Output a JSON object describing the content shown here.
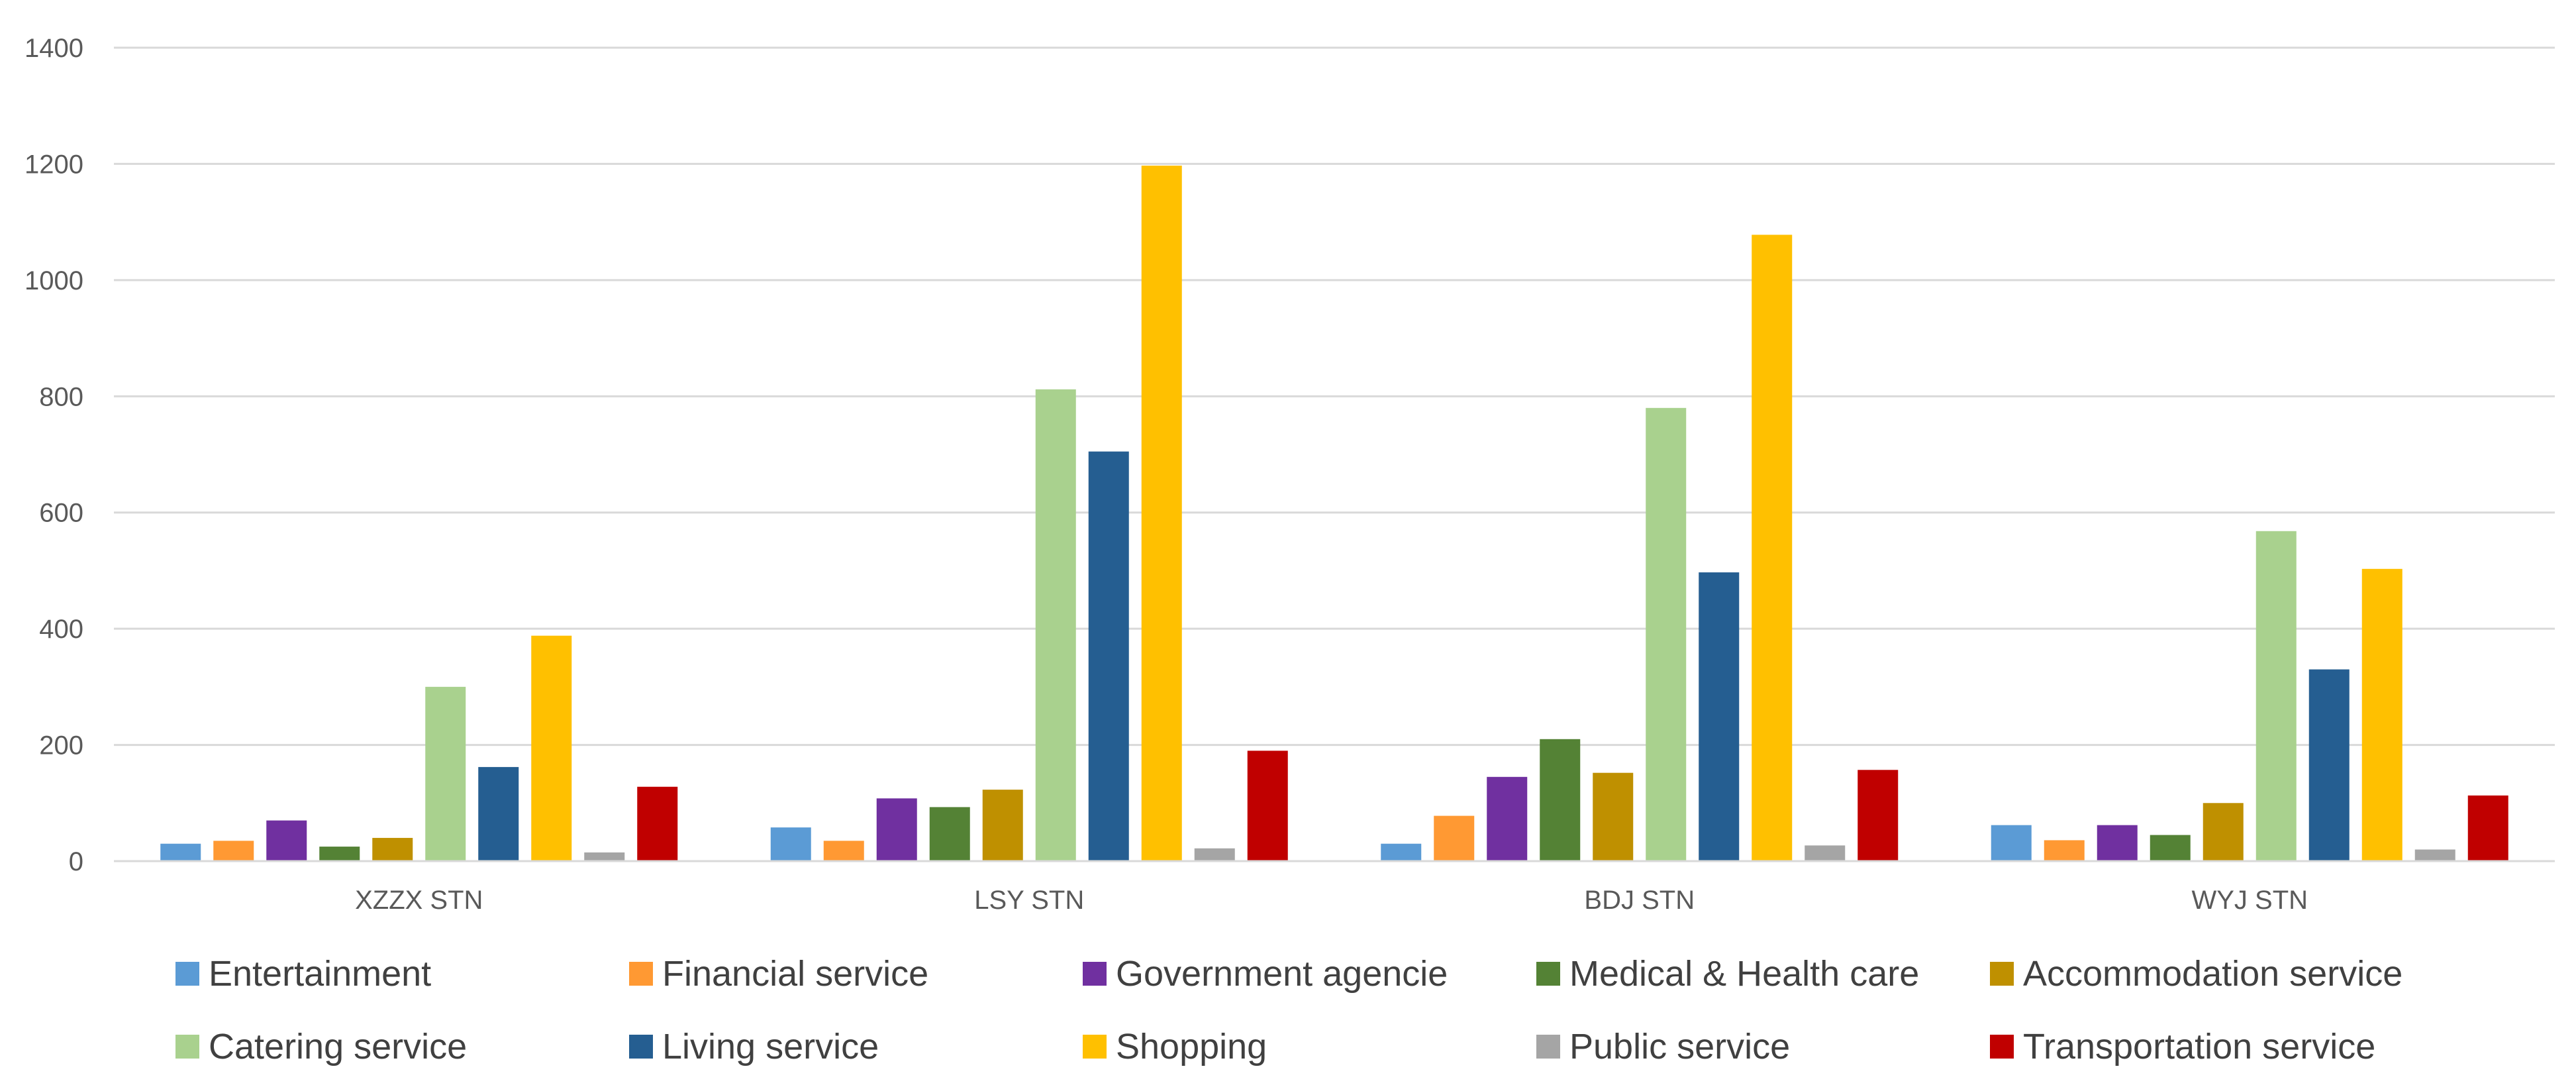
{
  "chart_data": {
    "type": "bar",
    "categories": [
      "XZZX STN",
      "LSY STN",
      "BDJ STN",
      "WYJ STN"
    ],
    "series": [
      {
        "name": "Entertainment",
        "color": "#5b9bd5",
        "values": [
          30,
          58,
          30,
          62
        ]
      },
      {
        "name": "Financial service",
        "color": "#ff9933",
        "values": [
          35,
          35,
          78,
          36
        ]
      },
      {
        "name": "Government agencie",
        "color": "#7030a0",
        "values": [
          70,
          108,
          145,
          62
        ]
      },
      {
        "name": "Medical & Health care",
        "color": "#548235",
        "values": [
          25,
          93,
          210,
          45
        ]
      },
      {
        "name": "Accommodation service",
        "color": "#bf9000",
        "values": [
          40,
          123,
          152,
          100
        ]
      },
      {
        "name": "Catering service",
        "color": "#a9d18e",
        "values": [
          300,
          812,
          780,
          568
        ]
      },
      {
        "name": "Living  service",
        "color": "#255e91",
        "values": [
          162,
          705,
          497,
          330
        ]
      },
      {
        "name": "Shopping",
        "color": "#ffc000",
        "values": [
          388,
          1197,
          1078,
          503
        ]
      },
      {
        "name": "Public service",
        "color": "#a5a5a5",
        "values": [
          15,
          22,
          27,
          20
        ]
      },
      {
        "name": "Transportation service",
        "color": "#c00000",
        "values": [
          128,
          190,
          157,
          113
        ]
      }
    ],
    "yticks": [
      "0",
      "200",
      "400",
      "600",
      "800",
      "1000",
      "1200",
      "1400"
    ],
    "ylim": [
      0,
      1400
    ],
    "grid": true,
    "legend_position": "bottom",
    "title": "",
    "xlabel": "",
    "ylabel": ""
  }
}
